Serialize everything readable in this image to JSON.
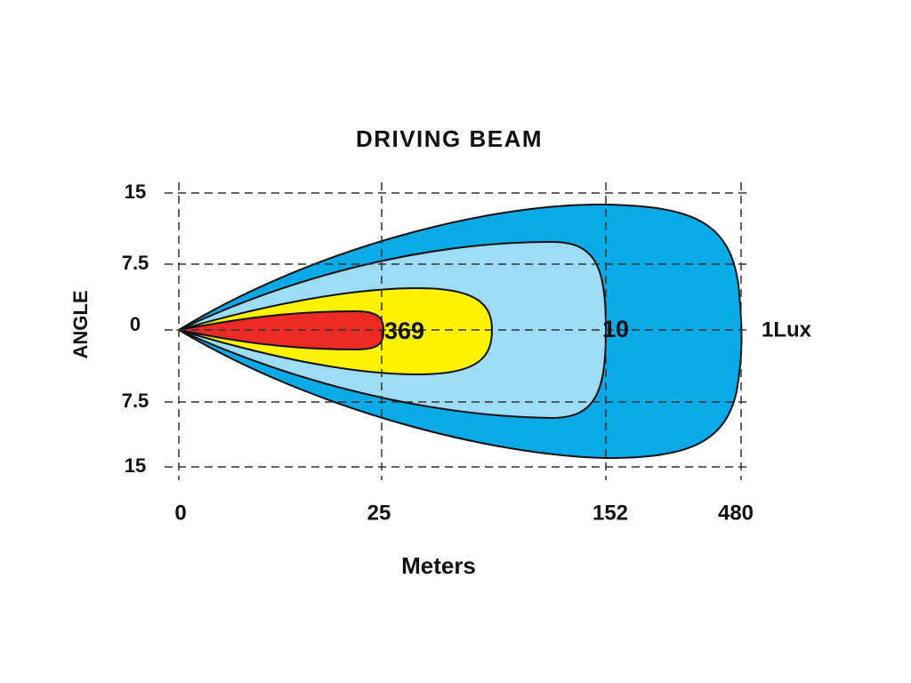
{
  "title": "DRIVING  BEAM",
  "y_axis": {
    "title": "ANGLE",
    "labels": [
      "15",
      "7.5",
      "0",
      "7.5",
      "15"
    ]
  },
  "x_axis": {
    "title": "Meters",
    "labels": [
      "0",
      "25",
      "152",
      "480"
    ]
  },
  "zones": [
    {
      "label": "369"
    },
    {
      "label": "10"
    },
    {
      "label": "1Lux"
    }
  ]
}
